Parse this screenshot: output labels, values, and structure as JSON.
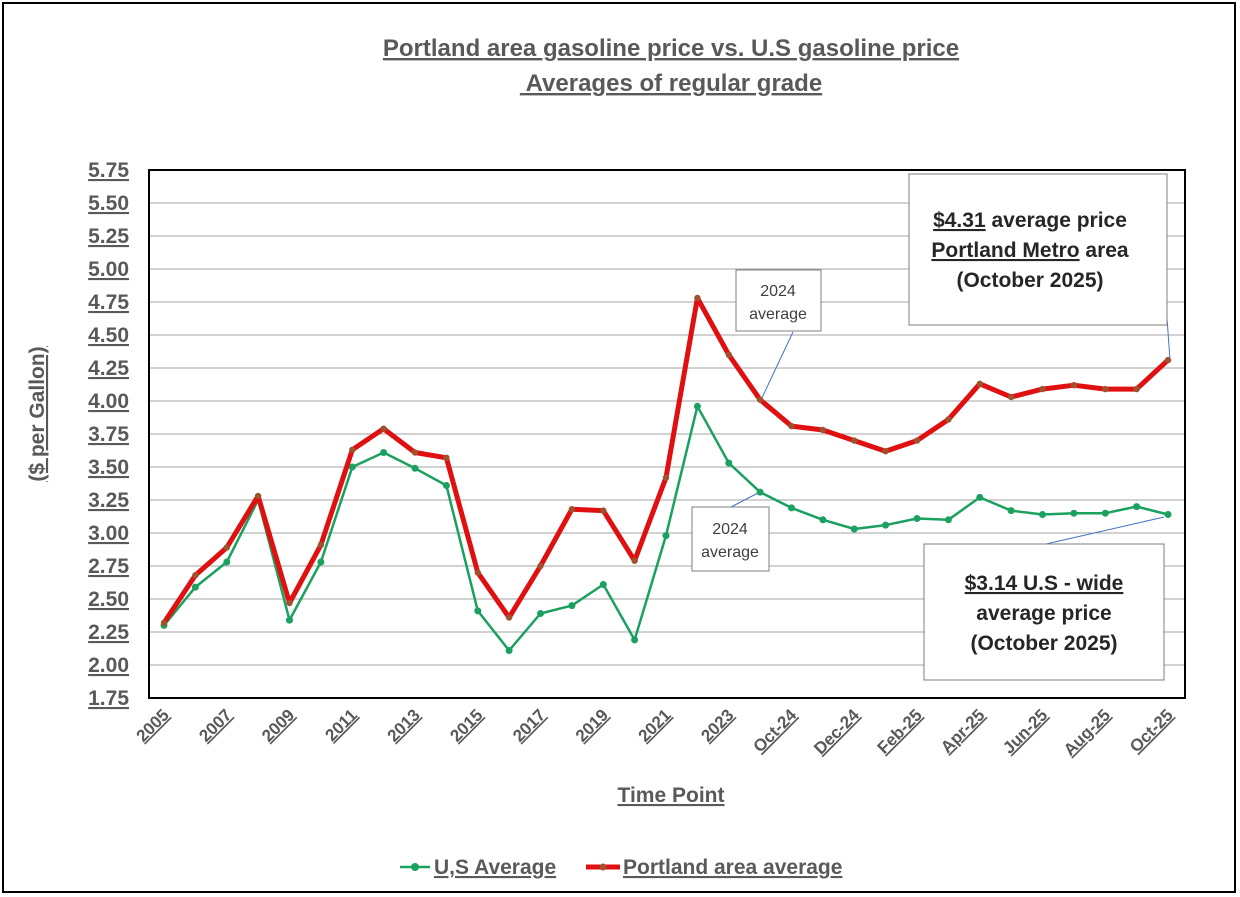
{
  "chart_data": {
    "type": "line",
    "title": "Portland area gasoline price vs. U.S gasoline price",
    "subtitle": " Averages of regular grade",
    "xlabel": "Time Point",
    "ylabel": "($ per Gallon)",
    "ylim": [
      1.75,
      5.75
    ],
    "ytick_labels": [
      "1.75",
      "2.00",
      "2.25",
      "2.50",
      "2.75",
      "3.00",
      "3.25",
      "3.50",
      "3.75",
      "4.00",
      "4.25",
      "4.50",
      "4.75",
      "5.00",
      "5.25",
      "5.50",
      "5.75"
    ],
    "grid": true,
    "legend_position": "bottom",
    "x": [
      "2005",
      "2006",
      "2007",
      "2008",
      "2009",
      "2010",
      "2011",
      "2012",
      "2013",
      "2014",
      "2015",
      "2016",
      "2017",
      "2018",
      "2019",
      "2020",
      "2021",
      "2022",
      "2023",
      "2024",
      "Oct-24",
      "Nov-24",
      "Dec-24",
      "Jan-25",
      "Feb-25",
      "Mar-25",
      "Apr-25",
      "May-25",
      "Jun-25",
      "Jul-25",
      "Aug-25",
      "Sep-25",
      "Oct-25"
    ],
    "x_tick_labels": [
      "2005",
      "",
      "2007",
      "",
      "2009",
      "",
      "2011",
      "",
      "2013",
      "",
      "2015",
      "",
      "2017",
      "",
      "2019",
      "",
      "2021",
      "",
      "2023",
      "",
      "Oct-24",
      "",
      "Dec-24",
      "",
      "Feb-25",
      "",
      "Apr-25",
      "",
      "Jun-25",
      "",
      "Aug-25",
      "",
      "Oct-25"
    ],
    "series": [
      {
        "name": "U,S Average",
        "color": "#1aa15f",
        "values": [
          2.3,
          2.59,
          2.78,
          3.25,
          2.34,
          2.78,
          3.5,
          3.61,
          3.49,
          3.36,
          2.41,
          2.11,
          2.39,
          2.45,
          2.61,
          2.19,
          2.98,
          3.96,
          3.53,
          3.31,
          3.19,
          3.1,
          3.03,
          3.06,
          3.11,
          3.1,
          3.27,
          3.17,
          3.14,
          3.15,
          3.15,
          3.2,
          3.14
        ]
      },
      {
        "name": "Portland area average",
        "color": "#e01010",
        "values": [
          2.32,
          2.68,
          2.89,
          3.28,
          2.47,
          2.91,
          3.63,
          3.79,
          3.61,
          3.57,
          2.7,
          2.36,
          2.75,
          3.18,
          3.17,
          2.79,
          3.42,
          4.78,
          4.35,
          4.01,
          3.81,
          3.78,
          3.7,
          3.62,
          3.7,
          3.86,
          4.13,
          4.03,
          4.09,
          4.12,
          4.09,
          4.09,
          4.31
        ]
      }
    ],
    "annotations": {
      "portland_2024": {
        "line1": "2024",
        "line2": "average"
      },
      "us_2024": {
        "line1": "2024",
        "line2": "average"
      },
      "portland_latest": {
        "price": "$4.31",
        "line1_rest": " average price",
        "line2_underlined": "Portland Metro",
        "line2_rest": " area",
        "line3": "(October 2025)"
      },
      "us_latest": {
        "line1": "$3.14 U.S - wide",
        "line2": "average price",
        "line3": "(October 2025)"
      }
    }
  }
}
